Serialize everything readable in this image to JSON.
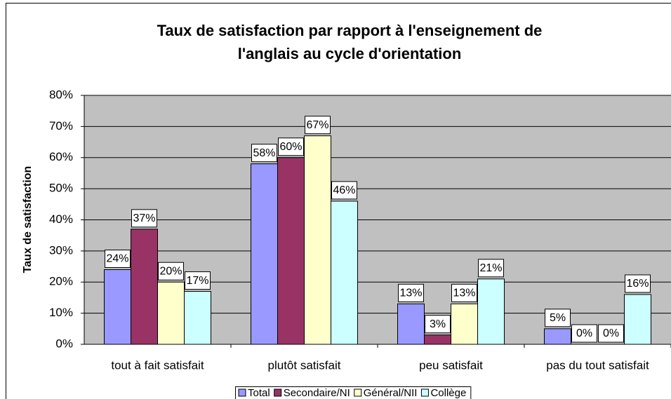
{
  "chart_data": {
    "type": "bar",
    "title": "Taux de satisfaction par rapport à l'enseignement de l'anglais au cycle d'orientation",
    "y_label": "Taux de satisfaction",
    "categories": [
      "tout à fait satisfait",
      "plutôt satisfait",
      "peu satisfait",
      "pas du tout satisfait"
    ],
    "series": [
      {
        "name": "Total",
        "color": "#9999ff",
        "values": [
          24,
          58,
          13,
          5
        ],
        "value_labels": [
          "24%",
          "58%",
          "13%",
          "5%"
        ]
      },
      {
        "name": "Secondaire/NI",
        "color": "#993366",
        "values": [
          37,
          60,
          3,
          0
        ],
        "value_labels": [
          "37%",
          "60%",
          "3%",
          "0%"
        ]
      },
      {
        "name": "Général/NII",
        "color": "#ffffcc",
        "values": [
          20,
          67,
          13,
          0
        ],
        "value_labels": [
          "20%",
          "67%",
          "13%",
          "0%"
        ]
      },
      {
        "name": "Collège",
        "color": "#ccffff",
        "values": [
          17,
          46,
          21,
          16
        ],
        "value_labels": [
          "17%",
          "46%",
          "21%",
          "16%"
        ]
      }
    ],
    "ylim": [
      0,
      80
    ],
    "yticks": [
      {
        "value": 0,
        "label": "0%"
      },
      {
        "value": 10,
        "label": "10%"
      },
      {
        "value": 20,
        "label": "20%"
      },
      {
        "value": 30,
        "label": "30%"
      },
      {
        "value": 40,
        "label": "40%"
      },
      {
        "value": 50,
        "label": "50%"
      },
      {
        "value": 60,
        "label": "60%"
      },
      {
        "value": 70,
        "label": "70%"
      },
      {
        "value": 80,
        "label": "80%"
      }
    ],
    "grid": true,
    "legend": "bottom"
  }
}
